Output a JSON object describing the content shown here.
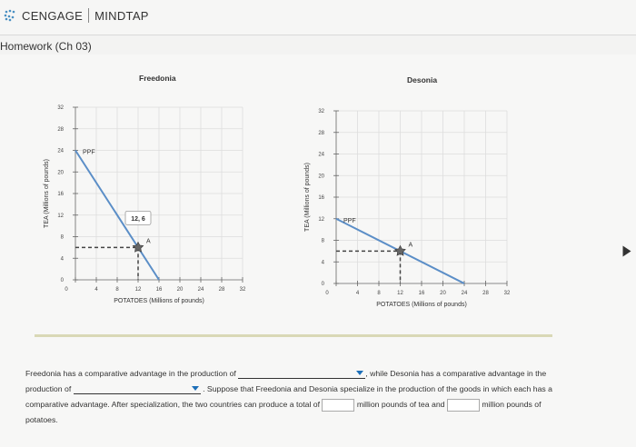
{
  "header": {
    "logo_text": "CENGAGE",
    "product_text": "MINDTAP",
    "logo_color": "#4a90c2"
  },
  "assignment": {
    "title": "Homework (Ch 03)"
  },
  "charts": {
    "freedonia": {
      "title": "Freedonia",
      "ylabel": "TEA (Millions of pounds)",
      "xlabel": "POTATOES (Millions of pounds)",
      "yticks": [
        "32",
        "28",
        "24",
        "20",
        "16",
        "12",
        "8",
        "4",
        "0"
      ],
      "xticks": [
        "0",
        "4",
        "8",
        "12",
        "16",
        "20",
        "24",
        "28",
        "32"
      ],
      "ppf_label": "PPF",
      "point_label": "A",
      "callout": "12, 6"
    },
    "desonia": {
      "title": "Desonia",
      "ylabel": "TEA (Millions of pounds)",
      "xlabel": "POTATOES (Millions of pounds)",
      "yticks": [
        "32",
        "28",
        "24",
        "20",
        "16",
        "12",
        "8",
        "4",
        "0"
      ],
      "xticks": [
        "0",
        "4",
        "8",
        "12",
        "16",
        "20",
        "24",
        "28",
        "32"
      ],
      "ppf_label": "PPF",
      "point_label": "A"
    }
  },
  "chart_data": [
    {
      "type": "line",
      "title": "Freedonia",
      "xlabel": "POTATOES (Millions of pounds)",
      "ylabel": "TEA (Millions of pounds)",
      "xlim": [
        0,
        32
      ],
      "ylim": [
        0,
        32
      ],
      "grid": true,
      "series": [
        {
          "name": "PPF",
          "x": [
            0,
            16
          ],
          "y": [
            24,
            0
          ]
        }
      ],
      "points": [
        {
          "label": "A",
          "x": 12,
          "y": 6,
          "callout": "12, 6"
        }
      ]
    },
    {
      "type": "line",
      "title": "Desonia",
      "xlabel": "POTATOES (Millions of pounds)",
      "ylabel": "TEA (Millions of pounds)",
      "xlim": [
        0,
        32
      ],
      "ylim": [
        0,
        32
      ],
      "grid": true,
      "series": [
        {
          "name": "PPF",
          "x": [
            0,
            24
          ],
          "y": [
            12,
            0
          ]
        }
      ],
      "points": [
        {
          "label": "A",
          "x": 12,
          "y": 6
        }
      ]
    }
  ],
  "question": {
    "p1": "Freedonia has a comparative advantage in the production of",
    "p2": ", while Desonia has a comparative advantage in the",
    "p3": "production of",
    "p4": ". Suppose that Freedonia and Desonia specialize in the production of the goods in which each has a",
    "p5": "comparative advantage. After specialization, the two countries can produce a total of",
    "p6": "million pounds of tea and",
    "p7": "million pounds of",
    "p8": "potatoes."
  }
}
